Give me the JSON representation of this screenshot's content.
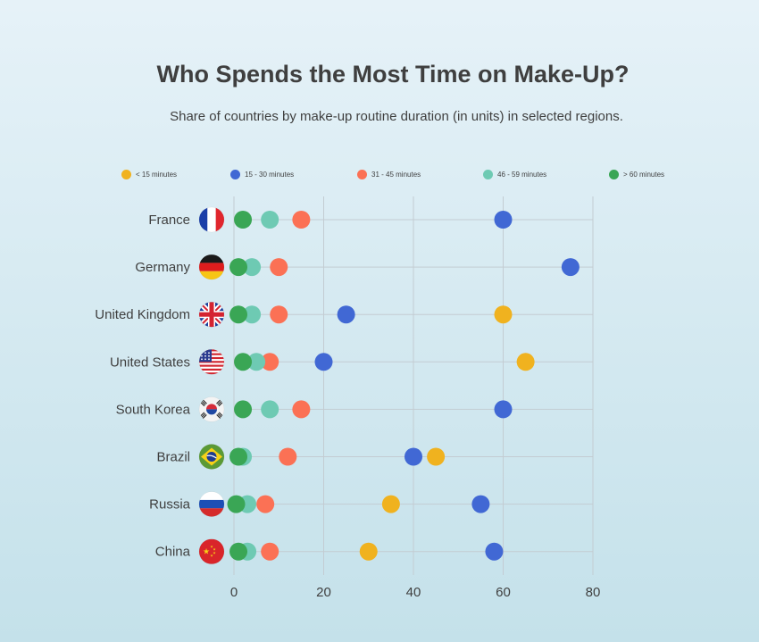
{
  "chart_data": {
    "type": "scatter",
    "title": "Who Spends the Most Time on Make-Up?",
    "subtitle": "Share of countries by make-up routine duration (in units) in selected regions.",
    "categories": [
      "France",
      "Germany",
      "United Kingdom",
      "United States",
      "South Korea",
      "Brazil",
      "Russia",
      "China"
    ],
    "flags": [
      "france-flag",
      "germany-flag",
      "uk-flag",
      "us-flag",
      "south-korea-flag",
      "brazil-flag",
      "russia-flag",
      "china-flag"
    ],
    "xlim": [
      0,
      80
    ],
    "xticks": [
      "0",
      "20",
      "40",
      "60",
      "80"
    ],
    "grid": true,
    "legend_position": "top",
    "series": [
      {
        "name": "< 15 minutes",
        "color": "#f0b21f",
        "values": [
          null,
          null,
          60,
          65,
          null,
          45,
          35,
          30
        ]
      },
      {
        "name": "15 - 30 minutes",
        "color": "#4168d4",
        "values": [
          60,
          75,
          25,
          20,
          60,
          40,
          55,
          58
        ]
      },
      {
        "name": "31 - 45 minutes",
        "color": "#fb7155",
        "values": [
          15,
          10,
          10,
          8,
          15,
          12,
          7,
          8
        ]
      },
      {
        "name": "46 - 59 minutes",
        "color": "#6ecab3",
        "values": [
          8,
          4,
          4,
          5,
          8,
          2,
          3,
          3
        ]
      },
      {
        "name": "> 60 minutes",
        "color": "#3aa655",
        "values": [
          2,
          1,
          1,
          2,
          2,
          1,
          0.5,
          1
        ]
      }
    ]
  }
}
